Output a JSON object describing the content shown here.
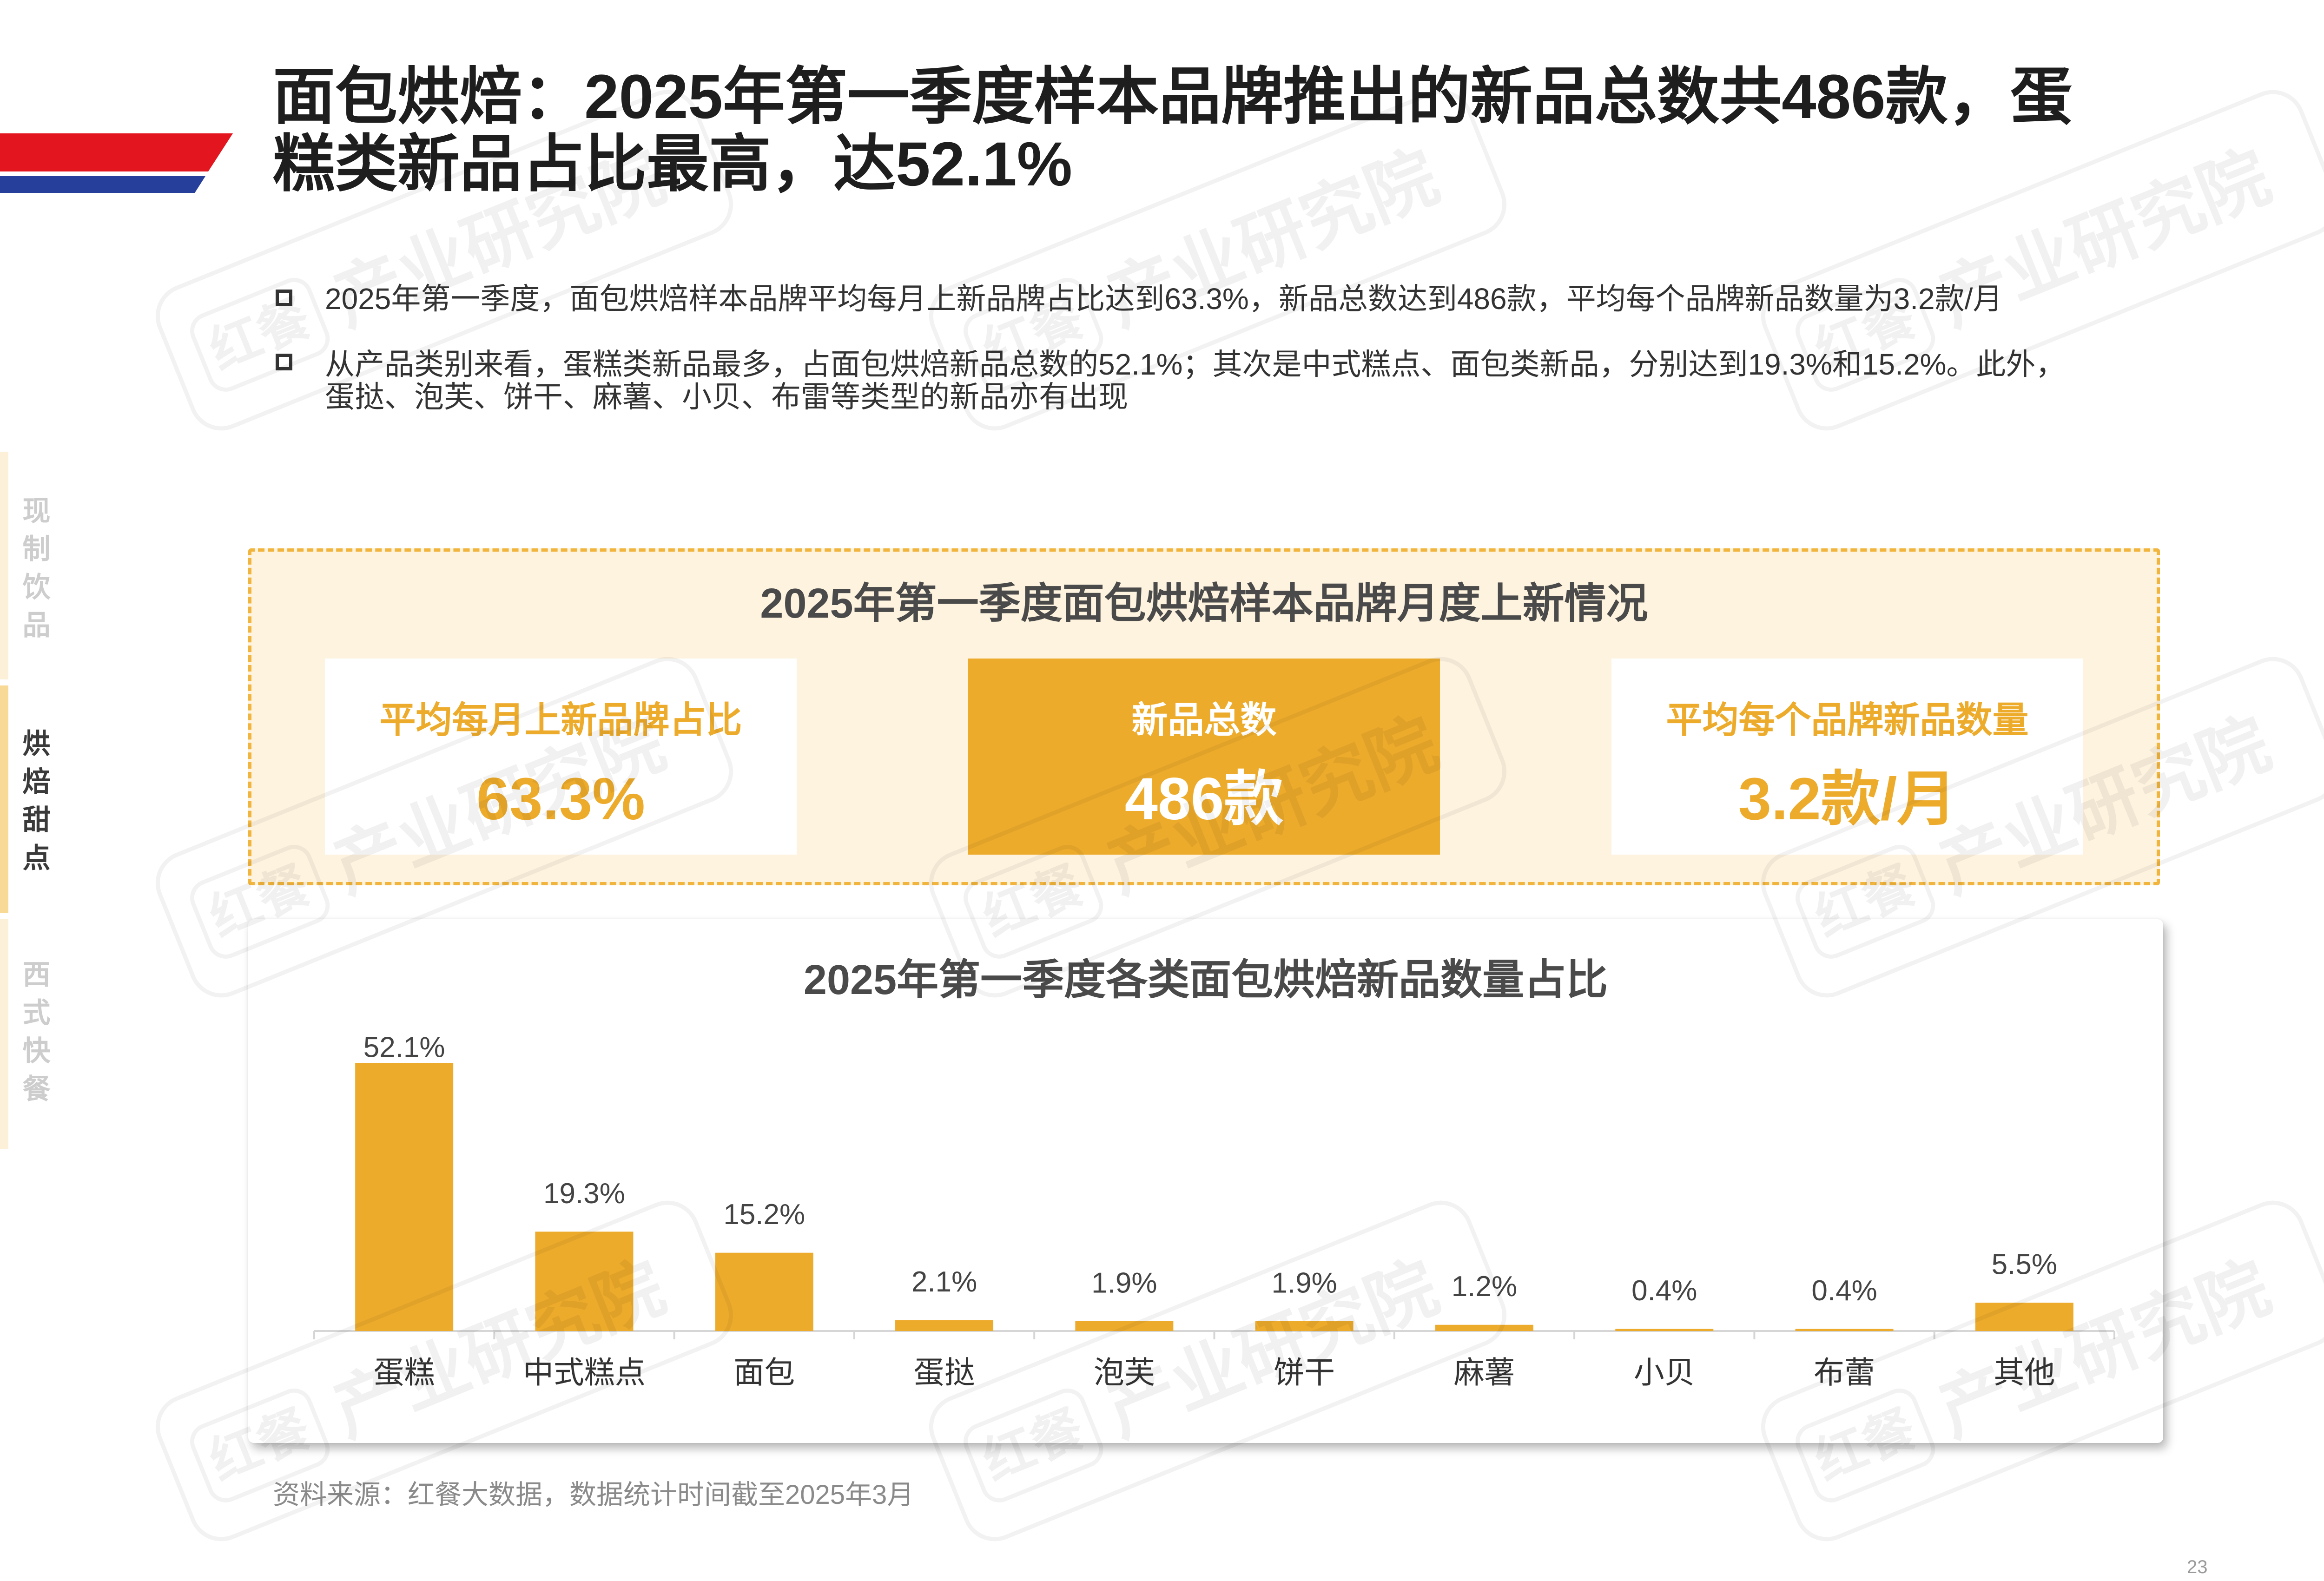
{
  "colors": {
    "gold": "#edab2c",
    "stripe_red": "#e3161f",
    "stripe_blue": "#253f9b",
    "panel_bg": "#fdf3df",
    "panel_border": "#f1b43c",
    "nav_inactive": "#cdcdcd",
    "nav_active": "#3a3a3a"
  },
  "header": {
    "title_lines": [
      "面包烘焙：2025年第一季度样本品牌推出的新品总数共486款，蛋",
      "糕类新品占比最高，达52.1%"
    ]
  },
  "side_nav": {
    "items": [
      {
        "label": "现制饮品",
        "active": false
      },
      {
        "label": "烘焙甜点",
        "active": true
      },
      {
        "label": "西式快餐",
        "active": false
      }
    ]
  },
  "bullets": [
    {
      "lines": [
        "2025年第一季度，面包烘焙样本品牌平均每月上新品牌占比达到63.3%，新品总数达到486款，平均每个品牌新品数量为3.2款/月"
      ]
    },
    {
      "lines": [
        "从产品类别来看，蛋糕类新品最多，占面包烘焙新品总数的52.1%；其次是中式糕点、面包类新品，分别达到19.3%和15.2%。此外，",
        "蛋挞、泡芙、饼干、麻薯、小贝、布雷等类型的新品亦有出现"
      ]
    }
  ],
  "kpi_panel": {
    "title": "2025年第一季度面包烘焙样本品牌月度上新情况",
    "cards": [
      {
        "label": "平均每月上新品牌占比",
        "value": "63.3%",
        "highlighted": false
      },
      {
        "label": "新品总数",
        "value": "486款",
        "highlighted": true
      },
      {
        "label": "平均每个品牌新品数量",
        "value": "3.2款/月",
        "highlighted": false
      }
    ]
  },
  "chart_data": {
    "type": "bar",
    "title": "2025年第一季度各类面包烘焙新品数量占比",
    "categories": [
      "蛋糕",
      "中式糕点",
      "面包",
      "蛋挞",
      "泡芙",
      "饼干",
      "麻薯",
      "小贝",
      "布蕾",
      "其他"
    ],
    "values": [
      52.1,
      19.3,
      15.2,
      2.1,
      1.9,
      1.9,
      1.2,
      0.4,
      0.4,
      5.5
    ],
    "value_labels": [
      "52.1%",
      "19.3%",
      "15.2%",
      "2.1%",
      "1.9%",
      "1.9%",
      "1.2%",
      "0.4%",
      "0.4%",
      "5.5%"
    ],
    "xlabel": "",
    "ylabel": "",
    "y_axis": "hidden",
    "grid": false,
    "legend": "none",
    "bar_color": "#edab2c"
  },
  "source_note": "资料来源：红餐大数据，数据统计时间截至2025年3月",
  "page_number": "23",
  "watermark": {
    "brand": "红餐",
    "org": "产业研究院"
  }
}
